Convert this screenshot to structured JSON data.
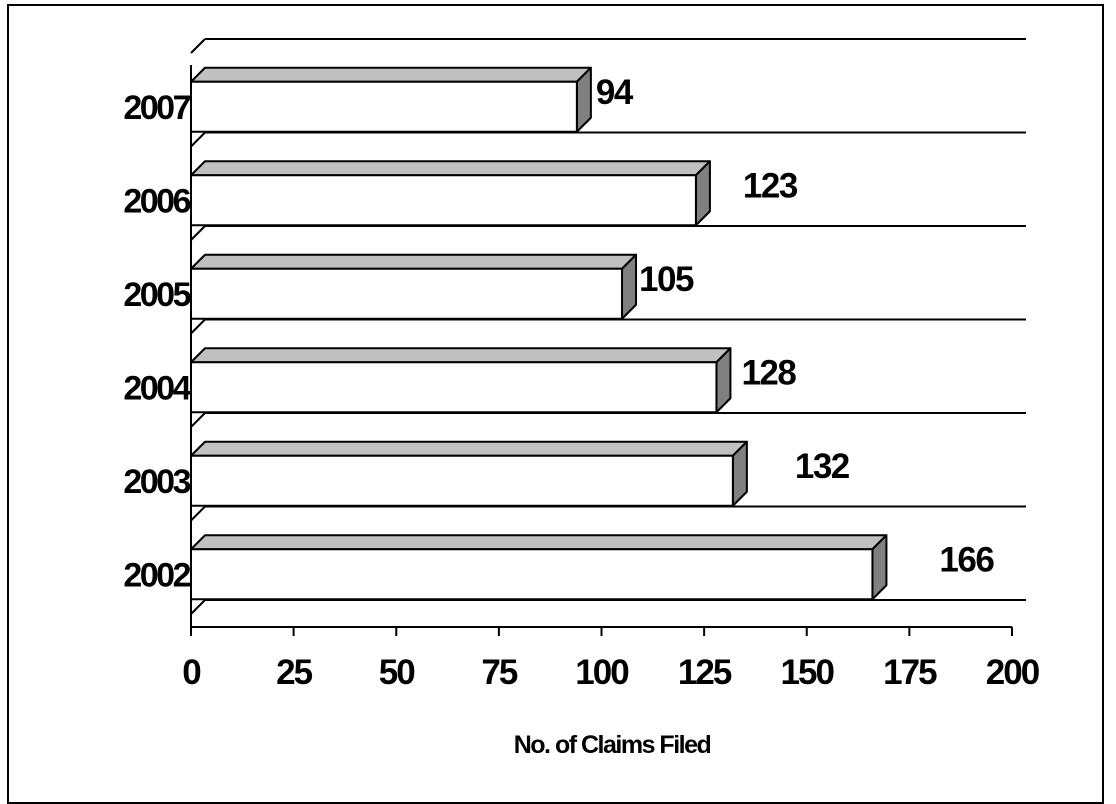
{
  "chart_data": {
    "type": "bar",
    "orientation": "horizontal",
    "style": "3d",
    "categories": [
      "2002",
      "2003",
      "2004",
      "2005",
      "2006",
      "2007"
    ],
    "values": [
      166,
      132,
      128,
      105,
      123,
      94
    ],
    "value_labels": [
      "166",
      "132",
      "128",
      "105",
      "123",
      "94"
    ],
    "xlabel": "No. of Claims Filed",
    "ylabel": "",
    "xlim": [
      0,
      200
    ],
    "xticks": [
      0,
      25,
      50,
      75,
      100,
      125,
      150,
      175,
      200
    ],
    "xtick_labels": [
      "0",
      "25",
      "50",
      "75",
      "100",
      "125",
      "150",
      "175",
      "200"
    ],
    "grid": "horizontal",
    "legend": "none",
    "colors": {
      "bar_front": "#ffffff",
      "bar_top": "#c0c0c0",
      "bar_side": "#808080",
      "outline": "#000000"
    }
  }
}
